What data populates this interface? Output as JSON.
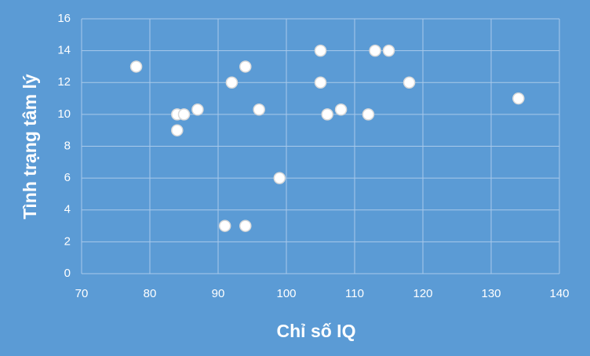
{
  "chart_data": {
    "type": "scatter",
    "xlabel": "Chỉ số IQ",
    "ylabel": "Tình trạng tâm lý",
    "x": [
      78,
      84,
      85,
      84,
      87,
      92,
      94,
      96,
      91,
      94,
      99,
      105,
      105,
      106,
      108,
      112,
      113,
      115,
      118,
      134
    ],
    "values": [
      13,
      10,
      10,
      9,
      10.3,
      12,
      13,
      10.3,
      3,
      3,
      6,
      14,
      12,
      10,
      10.3,
      10,
      14,
      14,
      12,
      11
    ],
    "color": "#ffffff",
    "xlim": [
      70,
      140
    ],
    "xticks": [
      70,
      80,
      90,
      100,
      110,
      120,
      130,
      140
    ],
    "ylim": [
      0,
      16
    ],
    "yticks": [
      0,
      2,
      4,
      6,
      8,
      10,
      12,
      14,
      16
    ],
    "grid": true
  }
}
